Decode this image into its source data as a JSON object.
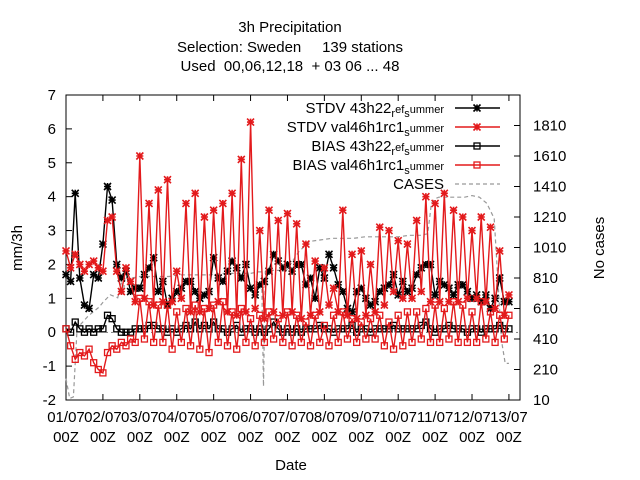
{
  "chart_data": {
    "type": "line",
    "title_lines": [
      "3h Precipitation",
      "Selection: Sweden     139 stations",
      "Used  00,06,12,18  + 03 06 ... 48"
    ],
    "xlabel": "Date",
    "ylabel": "mm/3h",
    "y2label": "No cases",
    "xlim": [
      0,
      12.3
    ],
    "ylim": [
      -2,
      7
    ],
    "y2lim": [
      10,
      2010
    ],
    "x_ticks": [
      0,
      1,
      2,
      3,
      4,
      5,
      6,
      7,
      8,
      9,
      10,
      11,
      12
    ],
    "x_tick_labels_top": [
      "01/07",
      "02/07",
      "03/07",
      "04/07",
      "05/07",
      "06/07",
      "07/07",
      "08/07",
      "09/07",
      "10/07",
      "11/07",
      "12/07",
      "13/07"
    ],
    "x_tick_labels_bottom": [
      "00Z",
      "00Z",
      "00Z",
      "00Z",
      "00Z",
      "00Z",
      "00Z",
      "00Z",
      "00Z",
      "00Z",
      "00Z",
      "00Z",
      "00Z"
    ],
    "y_ticks": [
      -2,
      -1,
      0,
      1,
      2,
      3,
      4,
      5,
      6,
      7
    ],
    "y2_ticks": [
      10,
      210,
      410,
      610,
      810,
      1010,
      1210,
      1410,
      1610,
      1810
    ],
    "legend_position": "top-right",
    "series": [
      {
        "name": "STDV 43h22_ref_summer",
        "legend_main": "STDV 43h22",
        "legend_sub1": "r",
        "legend_mid": "ef",
        "legend_sub2": "s",
        "legend_tail": "ummer",
        "color": "#000000",
        "marker": "asterisk",
        "axis": "y1",
        "x": [
          0.0,
          0.125,
          0.25,
          0.375,
          0.5,
          0.625,
          0.75,
          0.875,
          1.0,
          1.125,
          1.25,
          1.375,
          1.5,
          1.625,
          1.75,
          1.875,
          2.0,
          2.125,
          2.25,
          2.375,
          2.5,
          2.625,
          2.75,
          2.875,
          3.0,
          3.125,
          3.25,
          3.375,
          3.5,
          3.625,
          3.75,
          3.875,
          4.0,
          4.125,
          4.25,
          4.375,
          4.5,
          4.625,
          4.75,
          4.875,
          5.0,
          5.125,
          5.25,
          5.375,
          5.5,
          5.625,
          5.75,
          5.875,
          6.0,
          6.125,
          6.25,
          6.375,
          6.5,
          6.625,
          6.75,
          6.875,
          7.0,
          7.125,
          7.25,
          7.375,
          7.5,
          7.625,
          7.75,
          7.875,
          8.0,
          8.125,
          8.25,
          8.375,
          8.5,
          8.625,
          8.75,
          8.875,
          9.0,
          9.125,
          9.25,
          9.375,
          9.5,
          9.625,
          9.75,
          9.875,
          10.0,
          10.125,
          10.25,
          10.375,
          10.5,
          10.625,
          10.75,
          10.875,
          11.0,
          11.125,
          11.25,
          11.375,
          11.5,
          11.625,
          11.75,
          11.875,
          12.0
        ],
        "y": [
          1.7,
          1.5,
          4.1,
          1.6,
          0.8,
          0.7,
          1.7,
          1.6,
          2.6,
          4.3,
          3.9,
          2.0,
          1.6,
          1.8,
          1.2,
          1.3,
          1.3,
          1.7,
          1.9,
          2.2,
          1.2,
          1.5,
          0.8,
          1.0,
          1.2,
          1.3,
          1.5,
          1.5,
          1.2,
          1.0,
          1.1,
          1.2,
          2.2,
          1.6,
          1.5,
          1.8,
          2.1,
          1.9,
          1.6,
          2.0,
          1.3,
          1.1,
          1.4,
          1.5,
          1.8,
          2.3,
          2.1,
          1.9,
          2.0,
          1.8,
          2.0,
          2.0,
          1.4,
          1.6,
          1.0,
          1.9,
          1.6,
          2.3,
          1.9,
          1.4,
          1.2,
          0.7,
          0.6,
          1.2,
          1.3,
          1.0,
          0.8,
          0.9,
          1.2,
          1.3,
          1.4,
          1.7,
          1.1,
          1.5,
          1.2,
          1.3,
          1.7,
          1.9,
          2.0,
          2.0,
          1.1,
          1.5,
          1.4,
          1.3,
          1.1,
          1.4,
          1.4,
          1.2,
          1.0,
          1.1,
          0.9,
          1.1,
          0.7,
          1.0,
          1.6,
          0.9,
          0.9
        ]
      },
      {
        "name": "STDV val46h1rc1_summer",
        "legend_main": "STDV val46h1rc1",
        "legend_sub1": "",
        "legend_mid": "",
        "legend_sub2": "s",
        "legend_tail": "ummer",
        "color": "#e31a1c",
        "marker": "asterisk",
        "axis": "y1",
        "x": [
          0.0,
          0.125,
          0.25,
          0.375,
          0.5,
          0.625,
          0.75,
          0.875,
          1.0,
          1.125,
          1.25,
          1.375,
          1.5,
          1.625,
          1.75,
          1.875,
          2.0,
          2.125,
          2.25,
          2.375,
          2.5,
          2.625,
          2.75,
          2.875,
          3.0,
          3.125,
          3.25,
          3.375,
          3.5,
          3.625,
          3.75,
          3.875,
          4.0,
          4.125,
          4.25,
          4.375,
          4.5,
          4.625,
          4.75,
          4.875,
          5.0,
          5.125,
          5.25,
          5.375,
          5.5,
          5.625,
          5.75,
          5.875,
          6.0,
          6.125,
          6.25,
          6.375,
          6.5,
          6.625,
          6.75,
          6.875,
          7.0,
          7.125,
          7.25,
          7.375,
          7.5,
          7.625,
          7.75,
          7.875,
          8.0,
          8.125,
          8.25,
          8.375,
          8.5,
          8.625,
          8.75,
          8.875,
          9.0,
          9.125,
          9.25,
          9.375,
          9.5,
          9.625,
          9.75,
          9.875,
          10.0,
          10.125,
          10.25,
          10.375,
          10.5,
          10.625,
          10.75,
          10.875,
          11.0,
          11.125,
          11.25,
          11.375,
          11.5,
          11.625,
          11.75,
          11.875,
          12.0
        ],
        "y": [
          2.4,
          1.9,
          2.3,
          2.0,
          1.8,
          2.0,
          2.1,
          1.9,
          1.8,
          3.3,
          3.4,
          1.8,
          1.2,
          1.9,
          1.5,
          0.9,
          5.2,
          1.0,
          3.8,
          0.8,
          4.2,
          0.9,
          4.5,
          0.9,
          1.8,
          1.0,
          3.8,
          0.6,
          4.1,
          0.6,
          3.4,
          0.7,
          3.6,
          0.9,
          3.8,
          0.6,
          4.1,
          0.5,
          5.1,
          0.6,
          6.2,
          0.7,
          3.0,
          0.4,
          3.6,
          0.6,
          3.3,
          0.5,
          3.5,
          0.6,
          3.2,
          0.4,
          2.6,
          0.5,
          2.1,
          0.6,
          1.9,
          0.8,
          1.3,
          0.6,
          3.6,
          0.5,
          2.3,
          0.4,
          2.4,
          0.5,
          2.0,
          0.6,
          3.1,
          0.8,
          3.0,
          1.2,
          2.7,
          1.0,
          2.6,
          1.0,
          3.3,
          1.2,
          4.0,
          0.9,
          3.8,
          0.9,
          4.1,
          0.9,
          3.6,
          0.9,
          3.4,
          1.0,
          3.0,
          1.0,
          3.4,
          0.9,
          3.1,
          0.7,
          2.4,
          0.5,
          1.1
        ]
      },
      {
        "name": "BIAS 43h22_ref_summer",
        "legend_main": "BIAS 43h22",
        "legend_sub1": "r",
        "legend_mid": "ef",
        "legend_sub2": "s",
        "legend_tail": "ummer",
        "color": "#000000",
        "marker": "square",
        "axis": "y1",
        "x": [
          0.0,
          0.125,
          0.25,
          0.375,
          0.5,
          0.625,
          0.75,
          0.875,
          1.0,
          1.125,
          1.25,
          1.375,
          1.5,
          1.625,
          1.75,
          1.875,
          2.0,
          2.125,
          2.25,
          2.375,
          2.5,
          2.625,
          2.75,
          2.875,
          3.0,
          3.125,
          3.25,
          3.375,
          3.5,
          3.625,
          3.75,
          3.875,
          4.0,
          4.125,
          4.25,
          4.375,
          4.5,
          4.625,
          4.75,
          4.875,
          5.0,
          5.125,
          5.25,
          5.375,
          5.5,
          5.625,
          5.75,
          5.875,
          6.0,
          6.125,
          6.25,
          6.375,
          6.5,
          6.625,
          6.75,
          6.875,
          7.0,
          7.125,
          7.25,
          7.375,
          7.5,
          7.625,
          7.75,
          7.875,
          8.0,
          8.125,
          8.25,
          8.375,
          8.5,
          8.625,
          8.75,
          8.875,
          9.0,
          9.125,
          9.25,
          9.375,
          9.5,
          9.625,
          9.75,
          9.875,
          10.0,
          10.125,
          10.25,
          10.375,
          10.5,
          10.625,
          10.75,
          10.875,
          11.0,
          11.125,
          11.25,
          11.375,
          11.5,
          11.625,
          11.75,
          11.875,
          12.0
        ],
        "y": [
          0.1,
          0.0,
          0.3,
          0.1,
          0.0,
          0.1,
          0.0,
          0.1,
          0.1,
          0.5,
          0.4,
          0.1,
          0.0,
          0.0,
          0.0,
          0.1,
          0.1,
          0.1,
          0.2,
          0.2,
          0.1,
          0.1,
          0.0,
          0.1,
          0.0,
          0.1,
          0.2,
          0.1,
          0.3,
          0.1,
          0.2,
          0.1,
          0.3,
          0.1,
          0.1,
          0.0,
          0.1,
          0.2,
          0.0,
          0.1,
          0.1,
          0.0,
          0.1,
          0.0,
          0.1,
          0.3,
          0.1,
          0.0,
          0.1,
          0.0,
          0.1,
          0.0,
          0.1,
          0.1,
          0.1,
          0.2,
          0.1,
          0.1,
          0.0,
          0.1,
          0.1,
          0.1,
          0.2,
          0.0,
          0.1,
          0.1,
          0.0,
          0.1,
          0.1,
          0.1,
          0.1,
          0.2,
          0.1,
          0.1,
          0.1,
          0.1,
          0.1,
          0.2,
          0.3,
          0.1,
          0.0,
          0.1,
          0.1,
          0.2,
          0.1,
          0.1,
          0.1,
          0.0,
          0.1,
          0.1,
          0.0,
          0.1,
          0.1,
          0.1,
          0.2,
          0.1,
          0.1
        ]
      },
      {
        "name": "BIAS val46h1rc1_summer",
        "legend_main": "BIAS val46h1rc1",
        "legend_sub1": "",
        "legend_mid": "",
        "legend_sub2": "s",
        "legend_tail": "ummer",
        "color": "#e31a1c",
        "marker": "square",
        "axis": "y1",
        "x": [
          0.0,
          0.125,
          0.25,
          0.375,
          0.5,
          0.625,
          0.75,
          0.875,
          1.0,
          1.125,
          1.25,
          1.375,
          1.5,
          1.625,
          1.75,
          1.875,
          2.0,
          2.125,
          2.25,
          2.375,
          2.5,
          2.625,
          2.75,
          2.875,
          3.0,
          3.125,
          3.25,
          3.375,
          3.5,
          3.625,
          3.75,
          3.875,
          4.0,
          4.125,
          4.25,
          4.375,
          4.5,
          4.625,
          4.75,
          4.875,
          5.0,
          5.125,
          5.25,
          5.375,
          5.5,
          5.625,
          5.75,
          5.875,
          6.0,
          6.125,
          6.25,
          6.375,
          6.5,
          6.625,
          6.75,
          6.875,
          7.0,
          7.125,
          7.25,
          7.375,
          7.5,
          7.625,
          7.75,
          7.875,
          8.0,
          8.125,
          8.25,
          8.375,
          8.5,
          8.625,
          8.75,
          8.875,
          9.0,
          9.125,
          9.25,
          9.375,
          9.5,
          9.625,
          9.75,
          9.875,
          10.0,
          10.125,
          10.25,
          10.375,
          10.5,
          10.625,
          10.75,
          10.875,
          11.0,
          11.125,
          11.25,
          11.375,
          11.5,
          11.625,
          11.75,
          11.875,
          12.0
        ],
        "y": [
          0.1,
          -0.4,
          -0.8,
          -0.6,
          -0.7,
          -0.5,
          -0.9,
          -1.1,
          -1.2,
          -0.6,
          -0.4,
          -0.5,
          -0.3,
          -0.4,
          -0.2,
          -0.3,
          1.0,
          -0.2,
          0.9,
          -0.3,
          0.8,
          -0.3,
          0.8,
          -0.5,
          0.6,
          -0.3,
          0.7,
          -0.4,
          0.8,
          -0.5,
          0.7,
          -0.6,
          0.8,
          -0.3,
          0.9,
          -0.4,
          0.6,
          -0.5,
          0.7,
          -0.3,
          0.4,
          -0.4,
          0.5,
          -0.3,
          0.6,
          -0.2,
          0.4,
          -0.3,
          0.6,
          -0.4,
          0.5,
          -0.3,
          0.3,
          -0.4,
          0.5,
          -0.3,
          0.2,
          -0.4,
          0.5,
          -0.3,
          0.6,
          -0.2,
          0.4,
          -0.3,
          0.3,
          -0.2,
          0.4,
          -0.2,
          0.5,
          -0.4,
          0.3,
          -0.5,
          0.5,
          -0.4,
          0.6,
          -0.3,
          0.6,
          -0.2,
          0.7,
          -0.3,
          0.8,
          -0.3,
          0.7,
          -0.2,
          0.9,
          -0.3,
          0.8,
          -0.3,
          0.6,
          -0.3,
          0.9,
          -0.2,
          0.6,
          -0.3,
          0.5,
          -0.2,
          0.5
        ]
      },
      {
        "name": "CASES",
        "legend_main": "CASES",
        "legend_sub1": "",
        "legend_mid": "",
        "legend_sub2": "",
        "legend_tail": "",
        "color": "#999999",
        "marker": "none",
        "dash": true,
        "axis": "y2",
        "x": [
          0.0,
          0.1,
          0.2,
          0.3,
          0.6,
          0.9,
          1.0,
          1.2,
          1.4,
          1.5,
          1.55,
          1.6,
          1.7,
          1.8,
          2.0,
          2.3,
          2.6,
          2.8,
          3.0,
          3.3,
          3.6,
          3.9,
          4.2,
          4.5,
          4.8,
          5.0,
          5.2,
          5.3,
          5.35,
          5.4,
          5.45,
          5.5,
          5.6,
          5.7,
          5.8,
          6.0,
          6.3,
          6.6,
          6.9,
          7.2,
          7.5,
          7.8,
          8.1,
          8.4,
          8.7,
          9.0,
          9.3,
          9.6,
          9.8,
          9.85,
          9.9,
          10.0,
          10.1,
          10.2,
          10.5,
          10.8,
          11.0,
          11.2,
          11.4,
          11.6,
          11.8,
          11.9,
          12.0
        ],
        "y": [
          150,
          20,
          30,
          480,
          560,
          620,
          650,
          700,
          680,
          780,
          700,
          820,
          800,
          810,
          820,
          820,
          820,
          820,
          830,
          830,
          830,
          830,
          840,
          840,
          840,
          840,
          850,
          850,
          100,
          850,
          850,
          860,
          860,
          860,
          860,
          870,
          980,
          1050,
          1060,
          1070,
          1070,
          1070,
          1080,
          1080,
          1080,
          1080,
          1090,
          1090,
          1100,
          1200,
          1300,
          1330,
          1340,
          1340,
          1340,
          1340,
          1350,
          1340,
          1300,
          1200,
          400,
          250,
          250
        ]
      }
    ]
  }
}
